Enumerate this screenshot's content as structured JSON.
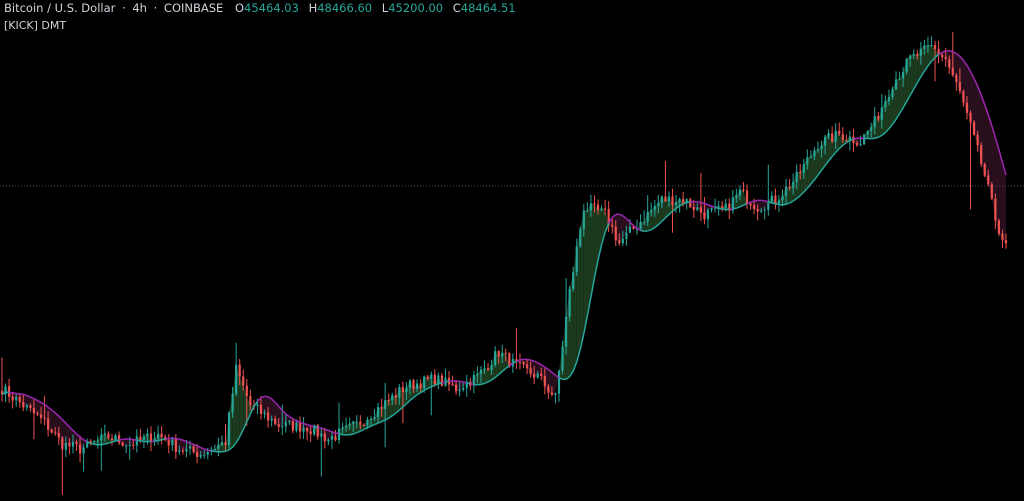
{
  "header": {
    "symbol": "Bitcoin / U.S. Dollar",
    "interval": "4h",
    "exchange": "COINBASE",
    "open_label": "O",
    "open_value": "45464.03",
    "high_label": "H",
    "high_value": "48466.60",
    "low_label": "L",
    "low_value": "45200.00",
    "close_label": "C",
    "close_value": "48464.51"
  },
  "indicator": {
    "label": "[KICK] DMT"
  },
  "colors": {
    "background": "#000000",
    "up": "#26a69a",
    "down": "#ef5350",
    "line_bull": "#26a69a",
    "line_bear": "#9c27b0",
    "fill_bull": "#1b3a1e",
    "fill_bear": "#2a0f1e",
    "price_line": "#363a45"
  },
  "chart_data": {
    "type": "candlestick",
    "title": "Bitcoin / U.S. Dollar · 4h · COINBASE",
    "keypoints": [
      [
        0,
        39200
      ],
      [
        6,
        38500
      ],
      [
        12,
        37800
      ],
      [
        17,
        36900
      ],
      [
        22,
        36700
      ],
      [
        30,
        37200
      ],
      [
        36,
        36900
      ],
      [
        44,
        37300
      ],
      [
        50,
        36700
      ],
      [
        56,
        36500
      ],
      [
        63,
        37000
      ],
      [
        66,
        40000
      ],
      [
        70,
        38500
      ],
      [
        78,
        37700
      ],
      [
        86,
        37600
      ],
      [
        92,
        37100
      ],
      [
        100,
        37700
      ],
      [
        108,
        38600
      ],
      [
        114,
        39300
      ],
      [
        122,
        39600
      ],
      [
        128,
        39200
      ],
      [
        134,
        39700
      ],
      [
        140,
        40700
      ],
      [
        145,
        40100
      ],
      [
        151,
        39700
      ],
      [
        156,
        38800
      ],
      [
        160,
        43200
      ],
      [
        164,
        46700
      ],
      [
        170,
        46400
      ],
      [
        174,
        45200
      ],
      [
        180,
        46100
      ],
      [
        186,
        47000
      ],
      [
        192,
        47000
      ],
      [
        198,
        46400
      ],
      [
        204,
        46600
      ],
      [
        208,
        47300
      ],
      [
        213,
        46700
      ],
      [
        218,
        47000
      ],
      [
        224,
        47900
      ],
      [
        230,
        49300
      ],
      [
        236,
        49700
      ],
      [
        242,
        49400
      ],
      [
        246,
        50200
      ],
      [
        251,
        51800
      ],
      [
        256,
        52800
      ],
      [
        262,
        53300
      ],
      [
        266,
        52800
      ],
      [
        270,
        51400
      ],
      [
        273,
        50000
      ],
      [
        277,
        48000
      ],
      [
        280,
        46200
      ],
      [
        283,
        45000
      ]
    ],
    "candle_count": 284
  }
}
